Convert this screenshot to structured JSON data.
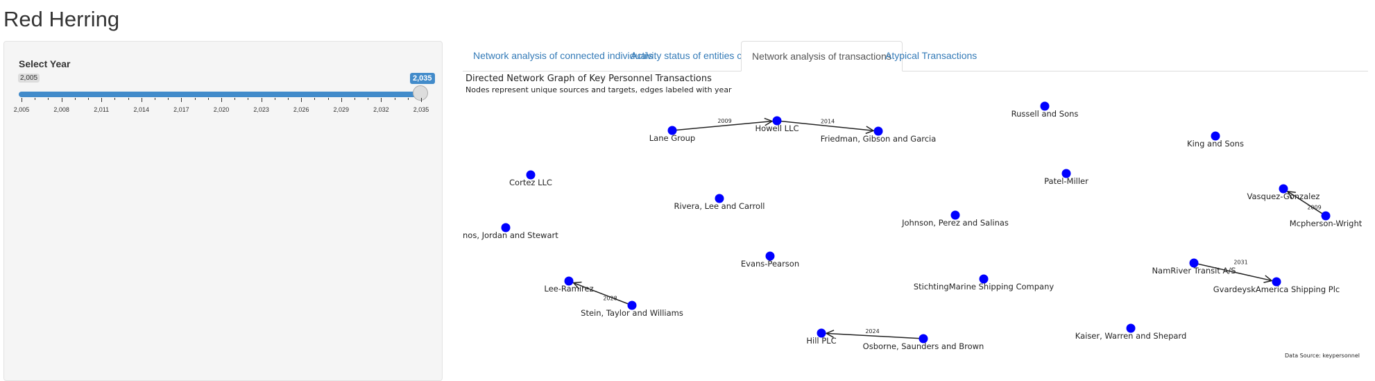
{
  "app": {
    "title": "Red Herring"
  },
  "sidebar": {
    "label": "Select Year",
    "min_value": "2,005",
    "max_value": "2,035",
    "selected": [
      2005,
      2035
    ],
    "ticks": [
      "2,005",
      "2,008",
      "2,011",
      "2,014",
      "2,017",
      "2,020",
      "2,023",
      "2,026",
      "2,029",
      "2,032",
      "2,035"
    ]
  },
  "tabs": [
    {
      "label": "Network analysis of connected individuals",
      "active": false
    },
    {
      "label": "Activity status of entities connected to SouthSeafood",
      "active": false
    },
    {
      "label": "Network analysis of transactions",
      "active": true
    },
    {
      "label": "Atypical Transactions",
      "active": false
    }
  ],
  "graph": {
    "title": "Directed Network Graph of Key Personnel Transactions",
    "subtitle": "Nodes represent unique sources and targets, edges labeled with year",
    "caption": "Data Source: keypersonnel",
    "node_color": "#0000ff",
    "nodes": [
      "Lane Group",
      "Howell LLC",
      "Friedman, Gibson and Garcia",
      "Russell and Sons",
      "King and Sons",
      "Cortez LLC",
      "Patel-Miller",
      "Vasquez-Gonzalez",
      "Mcpherson-Wright",
      "Rivera, Lee and Carroll",
      "Johnson, Perez and Salinas",
      "nos, Jordan and Stewart",
      "Evans-Pearson",
      "StichtingMarine Shipping Company",
      "NamRiver Transit A/S",
      "GvardeyskAmerica Shipping Plc",
      "Lee-Ramirez",
      "Stein, Taylor and Williams",
      "Hill PLC",
      "Osborne, Saunders and Brown",
      "Kaiser, Warren and Shepard"
    ],
    "edges": [
      {
        "source": "Lane Group",
        "target": "Howell LLC",
        "year": "2009"
      },
      {
        "source": "Howell LLC",
        "target": "Friedman, Gibson and Garcia",
        "year": "2014"
      },
      {
        "source": "Mcpherson-Wright",
        "target": "Vasquez-Gonzalez",
        "year": "2009"
      },
      {
        "source": "NamRiver Transit A/S",
        "target": "GvardeyskAmerica Shipping Plc",
        "year": "2031"
      },
      {
        "source": "Stein, Taylor and Williams",
        "target": "Lee-Ramirez",
        "year": "2028"
      },
      {
        "source": "Osborne, Saunders and Brown",
        "target": "Hill PLC",
        "year": "2024"
      }
    ]
  }
}
